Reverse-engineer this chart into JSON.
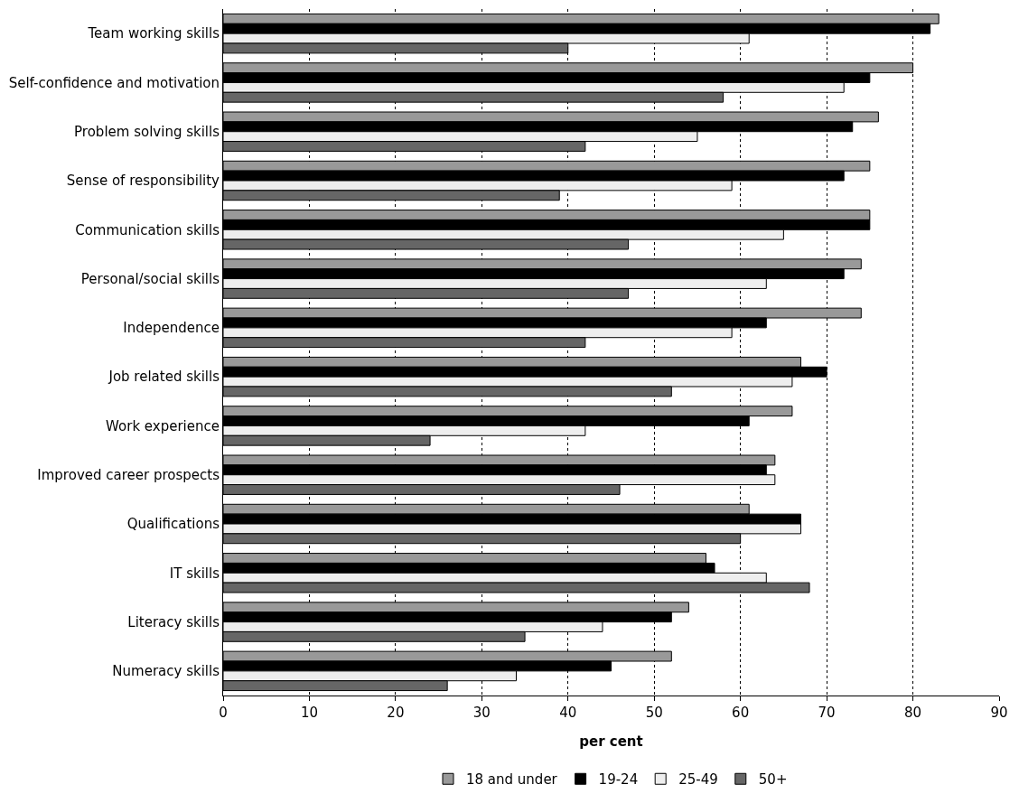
{
  "chart_data": {
    "type": "bar",
    "orientation": "horizontal",
    "xlabel": "per cent",
    "categories": [
      "Team working skills",
      "Self-confidence and motivation",
      "Problem solving skills",
      "Sense of responsibility",
      "Communication skills",
      "Personal/social skills",
      "Independence",
      "Job related skills",
      "Work experience",
      "Improved career prospects",
      "Qualifications",
      "IT skills",
      "Literacy skills",
      "Numeracy skills"
    ],
    "series": [
      {
        "name": "18 and under",
        "color": "#999999",
        "values": [
          83,
          80,
          76,
          75,
          75,
          74,
          74,
          67,
          66,
          64,
          61,
          56,
          54,
          52
        ]
      },
      {
        "name": "19-24",
        "color": "#000000",
        "values": [
          82,
          75,
          73,
          72,
          75,
          72,
          63,
          70,
          61,
          63,
          67,
          57,
          52,
          45
        ]
      },
      {
        "name": "25-49",
        "color": "#eeeeee",
        "values": [
          61,
          72,
          55,
          59,
          65,
          63,
          59,
          66,
          42,
          64,
          67,
          63,
          44,
          34
        ]
      },
      {
        "name": "50+",
        "color": "#666666",
        "values": [
          40,
          58,
          42,
          39,
          47,
          47,
          42,
          52,
          24,
          46,
          60,
          68,
          35,
          26
        ]
      }
    ],
    "xlim": [
      0,
      90
    ],
    "xticks": [
      0,
      10,
      20,
      30,
      40,
      50,
      60,
      70,
      80,
      90
    ],
    "grid": "x",
    "legend": "bottom"
  }
}
